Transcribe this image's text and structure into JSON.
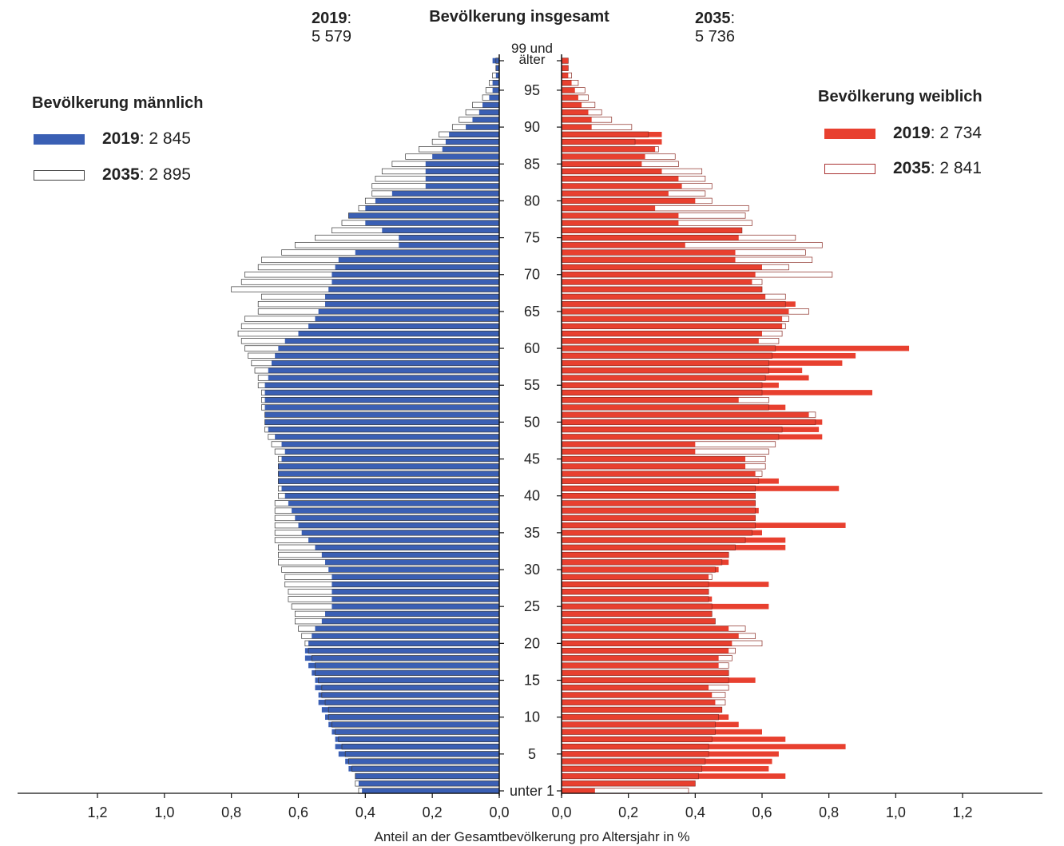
{
  "header": {
    "title": "Bevölkerung insgesamt",
    "left_year": "2019",
    "left_value": "5 579",
    "right_year": "2035",
    "right_value": "5 736"
  },
  "legend_male": {
    "title": "Bevölkerung männlich",
    "items": [
      {
        "year": "2019",
        "value": "2 845",
        "color": "#3a5fb4"
      },
      {
        "year": "2035",
        "value": "2 895",
        "color": "#ffffff"
      }
    ]
  },
  "legend_female": {
    "title": "Bevölkerung weiblich",
    "items": [
      {
        "year": "2019",
        "value": "2 734",
        "color": "#e8402f"
      },
      {
        "year": "2035",
        "value": "2 841",
        "color": "#ffffff"
      }
    ]
  },
  "chart_data": {
    "type": "bar",
    "orientation": "horizontal",
    "xlabel": "Anteil an der Gesamtbevölkerung pro Altersjahr in %",
    "xlim": [
      0,
      1.2
    ],
    "x_ticks": [
      "1,2",
      "1,0",
      "0,8",
      "0,6",
      "0,4",
      "0,2",
      "0,0",
      "0,0",
      "0,2",
      "0,4",
      "0,6",
      "0,8",
      "1,0",
      "1,2"
    ],
    "age_tick_labels": [
      {
        "age": 99,
        "label": "99 und älter"
      },
      {
        "age": 95,
        "label": "95"
      },
      {
        "age": 90,
        "label": "90"
      },
      {
        "age": 85,
        "label": "85"
      },
      {
        "age": 80,
        "label": "80"
      },
      {
        "age": 75,
        "label": "75"
      },
      {
        "age": 70,
        "label": "70"
      },
      {
        "age": 65,
        "label": "65"
      },
      {
        "age": 60,
        "label": "60"
      },
      {
        "age": 55,
        "label": "55"
      },
      {
        "age": 50,
        "label": "50"
      },
      {
        "age": 45,
        "label": "45"
      },
      {
        "age": 40,
        "label": "40"
      },
      {
        "age": 35,
        "label": "35"
      },
      {
        "age": 30,
        "label": "30"
      },
      {
        "age": 25,
        "label": "25"
      },
      {
        "age": 20,
        "label": "20"
      },
      {
        "age": 15,
        "label": "15"
      },
      {
        "age": 10,
        "label": "10"
      },
      {
        "age": 5,
        "label": "5"
      },
      {
        "age": 0,
        "label": "unter 1"
      }
    ],
    "ages": [
      0,
      1,
      2,
      3,
      4,
      5,
      6,
      7,
      8,
      9,
      10,
      11,
      12,
      13,
      14,
      15,
      16,
      17,
      18,
      19,
      20,
      21,
      22,
      23,
      24,
      25,
      26,
      27,
      28,
      29,
      30,
      31,
      32,
      33,
      34,
      35,
      36,
      37,
      38,
      39,
      40,
      41,
      42,
      43,
      44,
      45,
      46,
      47,
      48,
      49,
      50,
      51,
      52,
      53,
      54,
      55,
      56,
      57,
      58,
      59,
      60,
      61,
      62,
      63,
      64,
      65,
      66,
      67,
      68,
      69,
      70,
      71,
      72,
      73,
      74,
      75,
      76,
      77,
      78,
      79,
      80,
      81,
      82,
      83,
      84,
      85,
      86,
      87,
      88,
      89,
      90,
      91,
      92,
      93,
      94,
      95,
      96,
      97,
      98,
      99
    ],
    "series": [
      {
        "name": "männlich 2019",
        "side": "left",
        "color": "#3a5fb4",
        "values": [
          0.41,
          0.42,
          0.43,
          0.45,
          0.46,
          0.48,
          0.49,
          0.49,
          0.5,
          0.51,
          0.52,
          0.53,
          0.54,
          0.54,
          0.55,
          0.55,
          0.56,
          0.57,
          0.58,
          0.58,
          0.57,
          0.56,
          0.55,
          0.53,
          0.52,
          0.5,
          0.5,
          0.5,
          0.5,
          0.5,
          0.51,
          0.52,
          0.53,
          0.55,
          0.57,
          0.59,
          0.6,
          0.61,
          0.62,
          0.63,
          0.64,
          0.65,
          0.66,
          0.66,
          0.66,
          0.65,
          0.64,
          0.65,
          0.67,
          0.69,
          0.7,
          0.7,
          0.7,
          0.7,
          0.7,
          0.7,
          0.69,
          0.69,
          0.68,
          0.67,
          0.66,
          0.64,
          0.6,
          0.57,
          0.55,
          0.54,
          0.52,
          0.52,
          0.51,
          0.5,
          0.5,
          0.49,
          0.48,
          0.43,
          0.3,
          0.3,
          0.35,
          0.4,
          0.45,
          0.4,
          0.37,
          0.32,
          0.22,
          0.22,
          0.22,
          0.22,
          0.2,
          0.17,
          0.16,
          0.15,
          0.1,
          0.08,
          0.06,
          0.05,
          0.03,
          0.02,
          0.02,
          0.01,
          0.01,
          0.02
        ]
      },
      {
        "name": "männlich 2035",
        "side": "left",
        "color": "#ffffff",
        "values": [
          0.42,
          0.43,
          0.43,
          0.44,
          0.45,
          0.46,
          0.47,
          0.48,
          0.49,
          0.5,
          0.51,
          0.51,
          0.52,
          0.53,
          0.53,
          0.54,
          0.55,
          0.55,
          0.56,
          0.57,
          0.58,
          0.59,
          0.6,
          0.61,
          0.61,
          0.62,
          0.63,
          0.63,
          0.64,
          0.64,
          0.65,
          0.66,
          0.66,
          0.66,
          0.67,
          0.67,
          0.67,
          0.67,
          0.67,
          0.67,
          0.66,
          0.66,
          0.66,
          0.66,
          0.66,
          0.66,
          0.67,
          0.68,
          0.69,
          0.7,
          0.7,
          0.7,
          0.71,
          0.71,
          0.71,
          0.72,
          0.72,
          0.73,
          0.74,
          0.75,
          0.76,
          0.77,
          0.78,
          0.77,
          0.76,
          0.72,
          0.72,
          0.71,
          0.8,
          0.77,
          0.76,
          0.72,
          0.71,
          0.65,
          0.61,
          0.55,
          0.5,
          0.47,
          0.45,
          0.42,
          0.4,
          0.38,
          0.38,
          0.37,
          0.35,
          0.32,
          0.28,
          0.24,
          0.2,
          0.18,
          0.14,
          0.12,
          0.1,
          0.08,
          0.05,
          0.04,
          0.03,
          0.02,
          0.01,
          0.01
        ]
      },
      {
        "name": "weiblich 2019",
        "side": "right",
        "color": "#e8402f",
        "values": [
          0.1,
          0.4,
          0.67,
          0.62,
          0.63,
          0.65,
          0.85,
          0.67,
          0.6,
          0.53,
          0.5,
          0.48,
          0.46,
          0.45,
          0.44,
          0.58,
          0.5,
          0.47,
          0.47,
          0.5,
          0.51,
          0.53,
          0.5,
          0.46,
          0.45,
          0.62,
          0.45,
          0.44,
          0.62,
          0.44,
          0.47,
          0.5,
          0.5,
          0.67,
          0.67,
          0.6,
          0.85,
          0.58,
          0.59,
          0.58,
          0.58,
          0.83,
          0.65,
          0.58,
          0.55,
          0.55,
          0.4,
          0.4,
          0.78,
          0.77,
          0.78,
          0.74,
          0.67,
          0.53,
          0.93,
          0.65,
          0.74,
          0.72,
          0.84,
          0.88,
          1.04,
          0.59,
          0.6,
          0.66,
          0.66,
          0.68,
          0.7,
          0.61,
          0.6,
          0.57,
          0.58,
          0.6,
          0.52,
          0.52,
          0.37,
          0.53,
          0.54,
          0.35,
          0.35,
          0.28,
          0.4,
          0.32,
          0.36,
          0.35,
          0.3,
          0.24,
          0.25,
          0.28,
          0.3,
          0.3,
          0.09,
          0.09,
          0.08,
          0.06,
          0.05,
          0.04,
          0.03,
          0.02,
          0.02,
          0.02
        ]
      },
      {
        "name": "weiblich 2035",
        "side": "right",
        "color": "#ffffff",
        "values": [
          0.38,
          0.4,
          0.41,
          0.42,
          0.43,
          0.44,
          0.44,
          0.45,
          0.46,
          0.46,
          0.47,
          0.48,
          0.49,
          0.49,
          0.5,
          0.5,
          0.5,
          0.5,
          0.51,
          0.52,
          0.6,
          0.58,
          0.55,
          0.46,
          0.45,
          0.45,
          0.44,
          0.44,
          0.44,
          0.45,
          0.46,
          0.48,
          0.5,
          0.52,
          0.55,
          0.57,
          0.58,
          0.58,
          0.58,
          0.58,
          0.58,
          0.58,
          0.59,
          0.6,
          0.61,
          0.61,
          0.62,
          0.64,
          0.65,
          0.66,
          0.76,
          0.76,
          0.62,
          0.62,
          0.6,
          0.6,
          0.61,
          0.62,
          0.62,
          0.63,
          0.64,
          0.65,
          0.66,
          0.67,
          0.68,
          0.74,
          0.67,
          0.67,
          0.6,
          0.6,
          0.81,
          0.68,
          0.75,
          0.73,
          0.78,
          0.7,
          0.54,
          0.57,
          0.55,
          0.56,
          0.45,
          0.43,
          0.45,
          0.43,
          0.42,
          0.35,
          0.34,
          0.29,
          0.22,
          0.26,
          0.21,
          0.15,
          0.12,
          0.1,
          0.08,
          0.07,
          0.05,
          0.03,
          0.02,
          0.02
        ]
      }
    ]
  }
}
